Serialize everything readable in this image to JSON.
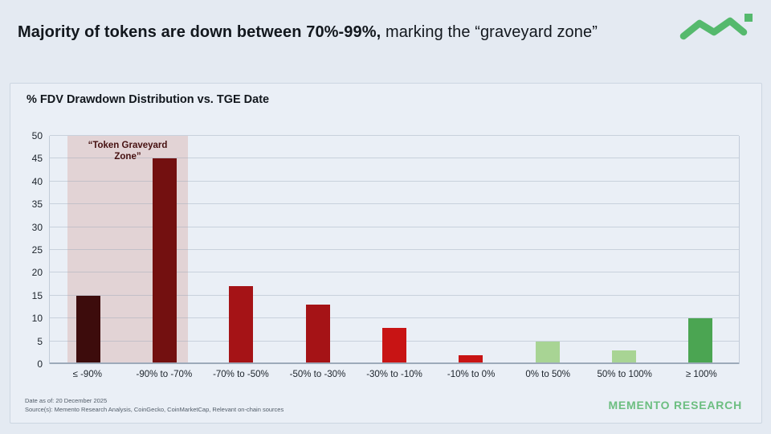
{
  "header": {
    "title_bold": "Majority of tokens are down between 70%-99%,",
    "title_regular": " marking the “graveyard zone”"
  },
  "chart": {
    "title": "% FDV Drawdown Distribution vs. TGE Date"
  },
  "chart_data": {
    "type": "bar",
    "title": "% FDV Drawdown Distribution vs. TGE Date",
    "categories": [
      "≤ -90%",
      "-90% to -70%",
      "-70% to -50%",
      "-50% to -30%",
      "-30% to -10%",
      "-10% to 0%",
      "0% to 50%",
      "50% to 100%",
      "≥ 100%"
    ],
    "values": [
      15,
      45,
      17,
      13,
      8,
      2,
      5,
      3,
      10
    ],
    "bar_colors": [
      "#3d0c0c",
      "#731010",
      "#a51316",
      "#a51316",
      "#c81414",
      "#c81414",
      "#a8d494",
      "#a8d494",
      "#4ba552"
    ],
    "xlabel": "",
    "ylabel": "",
    "ylim": [
      0,
      50
    ],
    "ytick_step": 5,
    "grid": true,
    "legend": "none",
    "annotation": {
      "label": "“Token Graveyard Zone”",
      "covers": [
        "≤ -90%",
        "-90% to -70%"
      ],
      "fill": "#e2d3d5",
      "text_color": "#461111"
    }
  },
  "footer": {
    "date_line": "Date as of: 20 December 2025",
    "source_line": "Source(s): Memento Research Analysis, CoinGecko, CoinMarketCap, Relevant on-chain sources"
  },
  "brand": {
    "wordmark": "MEMENTO RESEARCH",
    "color": "#6cbe80",
    "logo_color": "#55b96d"
  }
}
